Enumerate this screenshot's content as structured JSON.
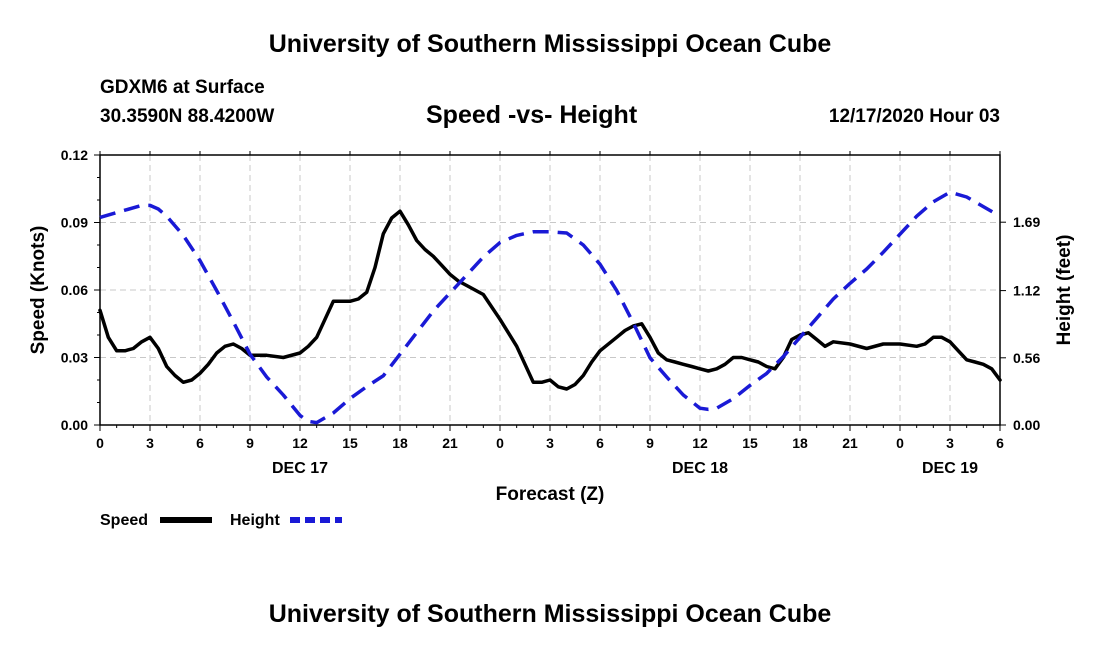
{
  "page": {
    "top_title": "University of Southern Mississippi Ocean Cube",
    "bottom_title": "University of Southern Mississippi Ocean Cube",
    "station": "GDXM6 at Surface",
    "coords": "30.3590N 88.4200W",
    "chart_title": "Speed -vs- Height",
    "run_time": "12/17/2020 Hour 03"
  },
  "colors": {
    "speed": "#000000",
    "height": "#1a1ad6"
  },
  "chart_data": {
    "type": "line",
    "title": "Speed -vs- Height",
    "xlabel": "Forecast (Z)",
    "ylabel": "Speed (Knots)",
    "y2label": "Height (feet)",
    "x_range_hours": [
      0,
      54
    ],
    "xticks": [
      {
        "h": 0,
        "label": "0"
      },
      {
        "h": 3,
        "label": "3"
      },
      {
        "h": 6,
        "label": "6"
      },
      {
        "h": 9,
        "label": "9"
      },
      {
        "h": 12,
        "label": "12"
      },
      {
        "h": 15,
        "label": "15"
      },
      {
        "h": 18,
        "label": "18"
      },
      {
        "h": 21,
        "label": "21"
      },
      {
        "h": 24,
        "label": "0"
      },
      {
        "h": 27,
        "label": "3"
      },
      {
        "h": 30,
        "label": "6"
      },
      {
        "h": 33,
        "label": "9"
      },
      {
        "h": 36,
        "label": "12"
      },
      {
        "h": 39,
        "label": "15"
      },
      {
        "h": 42,
        "label": "18"
      },
      {
        "h": 45,
        "label": "21"
      },
      {
        "h": 48,
        "label": "0"
      },
      {
        "h": 51,
        "label": "3"
      },
      {
        "h": 54,
        "label": "6"
      }
    ],
    "date_labels": [
      {
        "h": 12,
        "label": "DEC 17"
      },
      {
        "h": 36,
        "label": "DEC 18"
      },
      {
        "h": 51,
        "label": "DEC 19"
      }
    ],
    "ylim": [
      0,
      0.12
    ],
    "yticks": [
      "0.00",
      "0.03",
      "0.06",
      "0.09",
      "0.12"
    ],
    "y2lim": [
      0,
      2.25
    ],
    "y2ticks": [
      "0.00",
      "0.56",
      "1.12",
      "1.69"
    ],
    "legend": [
      {
        "name": "Speed",
        "style": "solid"
      },
      {
        "name": "Height",
        "style": "dashed"
      }
    ],
    "series": [
      {
        "name": "Speed",
        "axis": "left",
        "x": [
          0,
          0.5,
          1,
          1.5,
          2,
          2.5,
          3,
          3.5,
          4,
          4.5,
          5,
          5.5,
          6,
          6.5,
          7,
          7.5,
          8,
          8.5,
          9,
          9.5,
          10,
          11,
          12,
          12.5,
          13,
          13.5,
          14,
          14.5,
          15,
          15.5,
          16,
          16.5,
          17,
          17.5,
          18,
          18.5,
          19,
          19.5,
          20,
          20.5,
          21,
          21.5,
          22,
          23,
          24,
          25,
          25.5,
          26,
          26.5,
          27,
          27.5,
          28,
          28.5,
          29,
          29.5,
          30,
          31,
          31.5,
          32,
          32.5,
          33,
          33.5,
          34,
          34.5,
          35,
          35.5,
          36,
          36.5,
          37,
          37.5,
          38,
          38.5,
          39,
          39.5,
          40,
          40.5,
          41,
          41.5,
          42,
          42.5,
          43,
          43.5,
          44,
          45,
          46,
          47,
          48,
          49,
          49.5,
          50,
          50.5,
          51,
          51.5,
          52,
          52.5,
          53,
          53.5,
          54
        ],
        "values": [
          0.051,
          0.039,
          0.033,
          0.033,
          0.034,
          0.037,
          0.039,
          0.034,
          0.026,
          0.022,
          0.019,
          0.02,
          0.023,
          0.027,
          0.032,
          0.035,
          0.036,
          0.034,
          0.031,
          0.031,
          0.031,
          0.03,
          0.032,
          0.035,
          0.039,
          0.047,
          0.055,
          0.055,
          0.055,
          0.056,
          0.059,
          0.07,
          0.085,
          0.092,
          0.095,
          0.089,
          0.082,
          0.078,
          0.075,
          0.071,
          0.067,
          0.064,
          0.062,
          0.058,
          0.047,
          0.035,
          0.027,
          0.019,
          0.019,
          0.02,
          0.017,
          0.016,
          0.018,
          0.022,
          0.028,
          0.033,
          0.039,
          0.042,
          0.044,
          0.045,
          0.039,
          0.032,
          0.029,
          0.028,
          0.027,
          0.026,
          0.025,
          0.024,
          0.025,
          0.027,
          0.03,
          0.03,
          0.029,
          0.028,
          0.026,
          0.025,
          0.03,
          0.038,
          0.04,
          0.041,
          0.038,
          0.035,
          0.037,
          0.036,
          0.034,
          0.036,
          0.036,
          0.035,
          0.036,
          0.039,
          0.039,
          0.037,
          0.033,
          0.029,
          0.028,
          0.027,
          0.025,
          0.02
        ]
      },
      {
        "name": "Height",
        "axis": "right",
        "x": [
          0,
          1,
          2,
          2.5,
          3,
          3.5,
          4,
          5,
          6,
          7,
          8,
          9,
          10,
          11,
          12,
          12.5,
          13,
          14,
          15,
          16,
          17,
          18,
          19,
          20,
          21,
          22,
          23,
          24,
          25,
          26,
          27,
          28,
          29,
          30,
          31,
          32,
          33,
          34,
          35,
          36,
          36.5,
          37,
          38,
          39,
          40,
          41,
          42,
          43,
          44,
          45,
          46,
          47,
          48,
          49,
          50,
          51,
          52,
          53,
          54
        ],
        "values": [
          1.73,
          1.77,
          1.81,
          1.83,
          1.83,
          1.8,
          1.74,
          1.58,
          1.37,
          1.12,
          0.86,
          0.59,
          0.4,
          0.25,
          0.08,
          0.03,
          0.02,
          0.1,
          0.22,
          0.32,
          0.41,
          0.59,
          0.77,
          0.95,
          1.1,
          1.25,
          1.4,
          1.52,
          1.58,
          1.61,
          1.61,
          1.6,
          1.5,
          1.34,
          1.12,
          0.85,
          0.56,
          0.4,
          0.25,
          0.14,
          0.13,
          0.14,
          0.22,
          0.33,
          0.43,
          0.57,
          0.73,
          0.89,
          1.05,
          1.18,
          1.3,
          1.44,
          1.59,
          1.74,
          1.86,
          1.94,
          1.9,
          1.82,
          1.74
        ]
      }
    ]
  }
}
